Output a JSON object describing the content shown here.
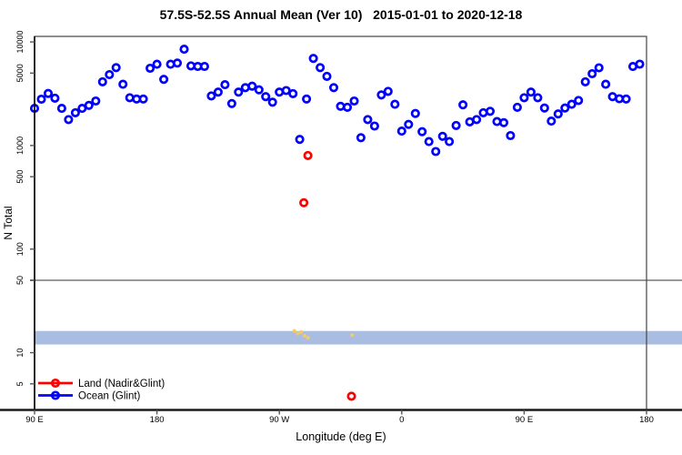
{
  "title": "57.5S-52.5S Annual Mean (Ver 10)   2015-01-01 to 2020-12-18",
  "chart_data": {
    "type": "scatter",
    "title": "57.5S-52.5S Annual Mean (Ver 10)   2015-01-01 to 2020-12-18",
    "xlabel": "Longitude (deg E)",
    "ylabel": "N Total",
    "y_scale": "log",
    "y_range": [
      2.8,
      11300
    ],
    "x_range_deg": [
      90,
      540
    ],
    "x_ticks": [
      {
        "deg": 90,
        "label": "90 E"
      },
      {
        "deg": 180,
        "label": "180"
      },
      {
        "deg": 270,
        "label": "90 W"
      },
      {
        "deg": 360,
        "label": "0"
      },
      {
        "deg": 450,
        "label": "90 E"
      },
      {
        "deg": 540,
        "label": "180"
      }
    ],
    "y_ticks": [
      {
        "value": 5,
        "label": "5"
      },
      {
        "value": 10,
        "label": "10"
      },
      {
        "value": 50,
        "label": "50"
      },
      {
        "value": 100,
        "label": "100"
      },
      {
        "value": 500,
        "label": "500"
      },
      {
        "value": 1000,
        "label": "1000"
      },
      {
        "value": 5000,
        "label": "5000"
      },
      {
        "value": 10000,
        "label": "10000"
      }
    ],
    "grid": "reference line at N = 50 only",
    "reference_line": {
      "value": 50,
      "color": "#999999"
    },
    "band": {
      "y_from": 12,
      "y_to": 16.2,
      "color": "#a8bddf"
    },
    "legend_position": "bottom-left",
    "legend": [
      {
        "label": "Land (Nadir&Glint)",
        "color": "#ff0000"
      },
      {
        "label": "Ocean (Glint)",
        "color": "#0000ff"
      }
    ],
    "series": [
      {
        "name": "Ocean (Glint)",
        "color": "#0000ff",
        "marker": "open-circle",
        "x_start_deg": 90,
        "x_step_deg": 5,
        "values": [
          2280,
          2800,
          3180,
          2860,
          2280,
          1780,
          2070,
          2280,
          2440,
          2690,
          4120,
          4830,
          5650,
          3900,
          2890,
          2810,
          2810,
          5570,
          6080,
          4350,
          6080,
          6250,
          8500,
          5870,
          5800,
          5800,
          3010,
          3280,
          3860,
          2540,
          3280,
          3620,
          3740,
          3450,
          2960,
          2620,
          3280,
          3390,
          3165,
          1145,
          2810,
          6930,
          5650,
          4650,
          3620,
          2390,
          2340,
          2690,
          1190,
          1780,
          1540,
          3080,
          3330,
          2500,
          1376,
          1597,
          2036,
          1360,
          1090,
          875,
          1226,
          1090,
          1560,
          2470,
          1690,
          1780,
          2070,
          2140,
          1700,
          1660,
          1245,
          2340,
          2890,
          3280,
          2890,
          2300,
          1720,
          2015,
          2300,
          2500,
          2720,
          4120,
          4930,
          5620,
          3900,
          2960,
          2830,
          2810,
          5780,
          6100
        ]
      },
      {
        "name": "Land (Nadir&Glint)",
        "color": "#ff0000",
        "marker": "open-circle",
        "x_deg": [
          288,
          291,
          323
        ],
        "values": [
          280,
          800,
          3.8
        ]
      },
      {
        "name": "unlabeled-yellow-points",
        "color": "#f4c968",
        "marker": "filled-dot",
        "x_deg": [
          281,
          283.5,
          286,
          288.5,
          291,
          323.5
        ],
        "values": [
          16.2,
          15.3,
          15.8,
          14.6,
          13.9,
          14.8
        ]
      }
    ]
  }
}
